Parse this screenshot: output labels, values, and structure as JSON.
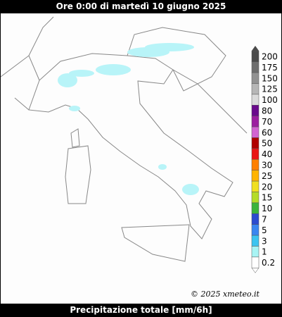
{
  "header": {
    "title": "Ore 0:00 di martedì 10 giugno 2025"
  },
  "map": {
    "credit": "© 2025 xmeteo.it"
  },
  "legend": {
    "items": [
      {
        "label": "200",
        "color": "#4a4a4a"
      },
      {
        "label": "175",
        "color": "#6e6e6e"
      },
      {
        "label": "150",
        "color": "#929292"
      },
      {
        "label": "125",
        "color": "#b6b6b6"
      },
      {
        "label": "100",
        "color": "#dadada"
      },
      {
        "label": "80",
        "color": "#6a0a8c"
      },
      {
        "label": "70",
        "color": "#9c1fa0"
      },
      {
        "label": "60",
        "color": "#d264d2"
      },
      {
        "label": "50",
        "color": "#b00000"
      },
      {
        "label": "40",
        "color": "#ea1414"
      },
      {
        "label": "30",
        "color": "#ff8000"
      },
      {
        "label": "25",
        "color": "#ffb400"
      },
      {
        "label": "20",
        "color": "#f0e020"
      },
      {
        "label": "15",
        "color": "#b4dc28"
      },
      {
        "label": "10",
        "color": "#3cb43c"
      },
      {
        "label": "7",
        "color": "#2c4cd0"
      },
      {
        "label": "5",
        "color": "#3a86f0"
      },
      {
        "label": "3",
        "color": "#3cc4f0"
      },
      {
        "label": "1",
        "color": "#a8f4f4"
      },
      {
        "label": "0.2",
        "color": "#ffffff"
      }
    ]
  },
  "footer": {
    "title": "Precipitazione totale [mm/6h]"
  }
}
